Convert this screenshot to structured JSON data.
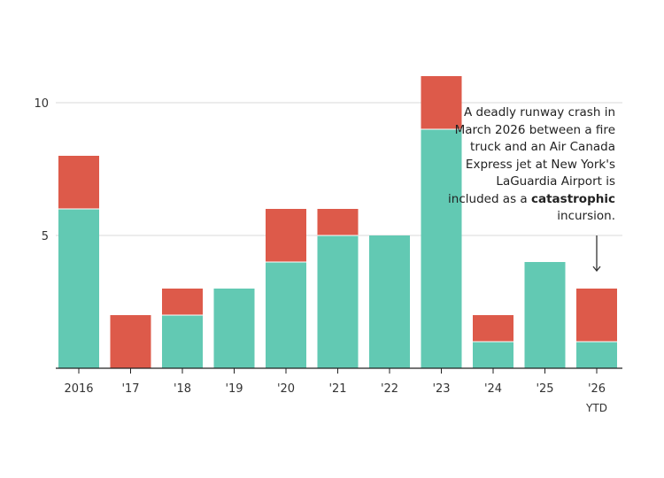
{
  "chart_data": {
    "type": "bar",
    "stacked": true,
    "categories": [
      "2016",
      "'17",
      "'18",
      "'19",
      "'20",
      "'21",
      "'22",
      "'23",
      "'24",
      "'25",
      "'26"
    ],
    "category_sublabels": {
      "'26": "YTD"
    },
    "series": [
      {
        "color": "#62c9b3",
        "values": [
          6,
          0,
          2,
          3,
          4,
          5,
          5,
          9,
          1,
          4,
          1
        ]
      },
      {
        "color": "#dd5a4a",
        "values": [
          2,
          2,
          1,
          0,
          2,
          1,
          0,
          2,
          1,
          0,
          2
        ]
      }
    ],
    "yticks": [
      5,
      10
    ],
    "ylim": [
      0,
      11
    ],
    "grid": true,
    "title": "",
    "xlabel": "",
    "ylabel": ""
  },
  "annotation": {
    "text_before": "A deadly runway crash in March 2026 between a fire truck and an Air Canada Express jet at New York's LaGuardia Airport is included as a",
    "emphasis": "catastrophic",
    "text_after": "incursion."
  },
  "colors": {
    "grid": "#d9d9d9",
    "axis": "#222222",
    "text": "#333333"
  }
}
